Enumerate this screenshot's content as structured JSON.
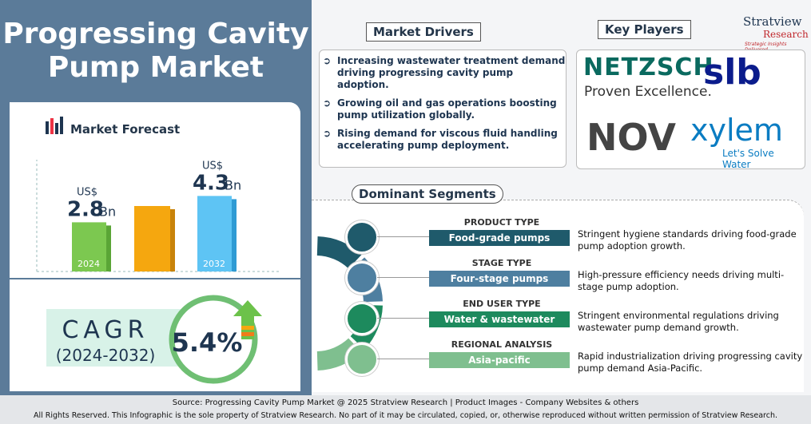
{
  "header": {
    "title": "Progressing Cavity Pump Market"
  },
  "forecast": {
    "title": "Market Forecast",
    "currency": "US$",
    "unit": "Bn",
    "bars": [
      {
        "year": "2024",
        "value": 2.8
      },
      {
        "year": "2032",
        "value": 4.3
      }
    ]
  },
  "cagr": {
    "label": "CAGR",
    "period": "(2024-2032)",
    "value": "5.4%"
  },
  "drivers": {
    "title": "Market Drivers",
    "items": [
      "Increasing wastewater treatment demand driving progressing cavity pump adoption.",
      "Growing oil and gas operations boosting pump utilization globally.",
      "Rising demand for viscous fluid handling accelerating pump deployment."
    ]
  },
  "key_players": {
    "title": "Key Players",
    "logos": [
      "NETZSCH",
      "Proven Excellence.",
      "slb",
      "NOV",
      "xylem",
      "Let's Solve Water"
    ]
  },
  "brand": {
    "name": "Stratview",
    "sub": "Research",
    "tagline": "Strategic Insights Delivered"
  },
  "segments": {
    "title": "Dominant Segments",
    "items": [
      {
        "category": "PRODUCT TYPE",
        "name": "Food-grade pumps",
        "description": "Stringent hygiene standards driving food-grade pump adoption growth."
      },
      {
        "category": "STAGE TYPE",
        "name": "Four-stage pumps",
        "description": "High-pressure efficiency needs driving multi-stage pump adoption."
      },
      {
        "category": "END USER TYPE",
        "name": "Water & wastewater",
        "description": "Stringent environmental regulations driving wastewater pump demand growth."
      },
      {
        "category": "REGIONAL ANALYSIS",
        "name": "Asia-pacific",
        "description": "Rapid industrialization driving progressing cavity pump demand Asia-Pacific."
      }
    ]
  },
  "footer": {
    "source": "Source:  Progressing Cavity Pump Market  @ 2025 Stratview Research | Product Images  - Company Websites & others",
    "rights": "All Rights Reserved. This Infographic is the sole property of Stratview Research. No part of it may be circulated, copied, or, otherwise reproduced without written permission of Stratview Research."
  }
}
